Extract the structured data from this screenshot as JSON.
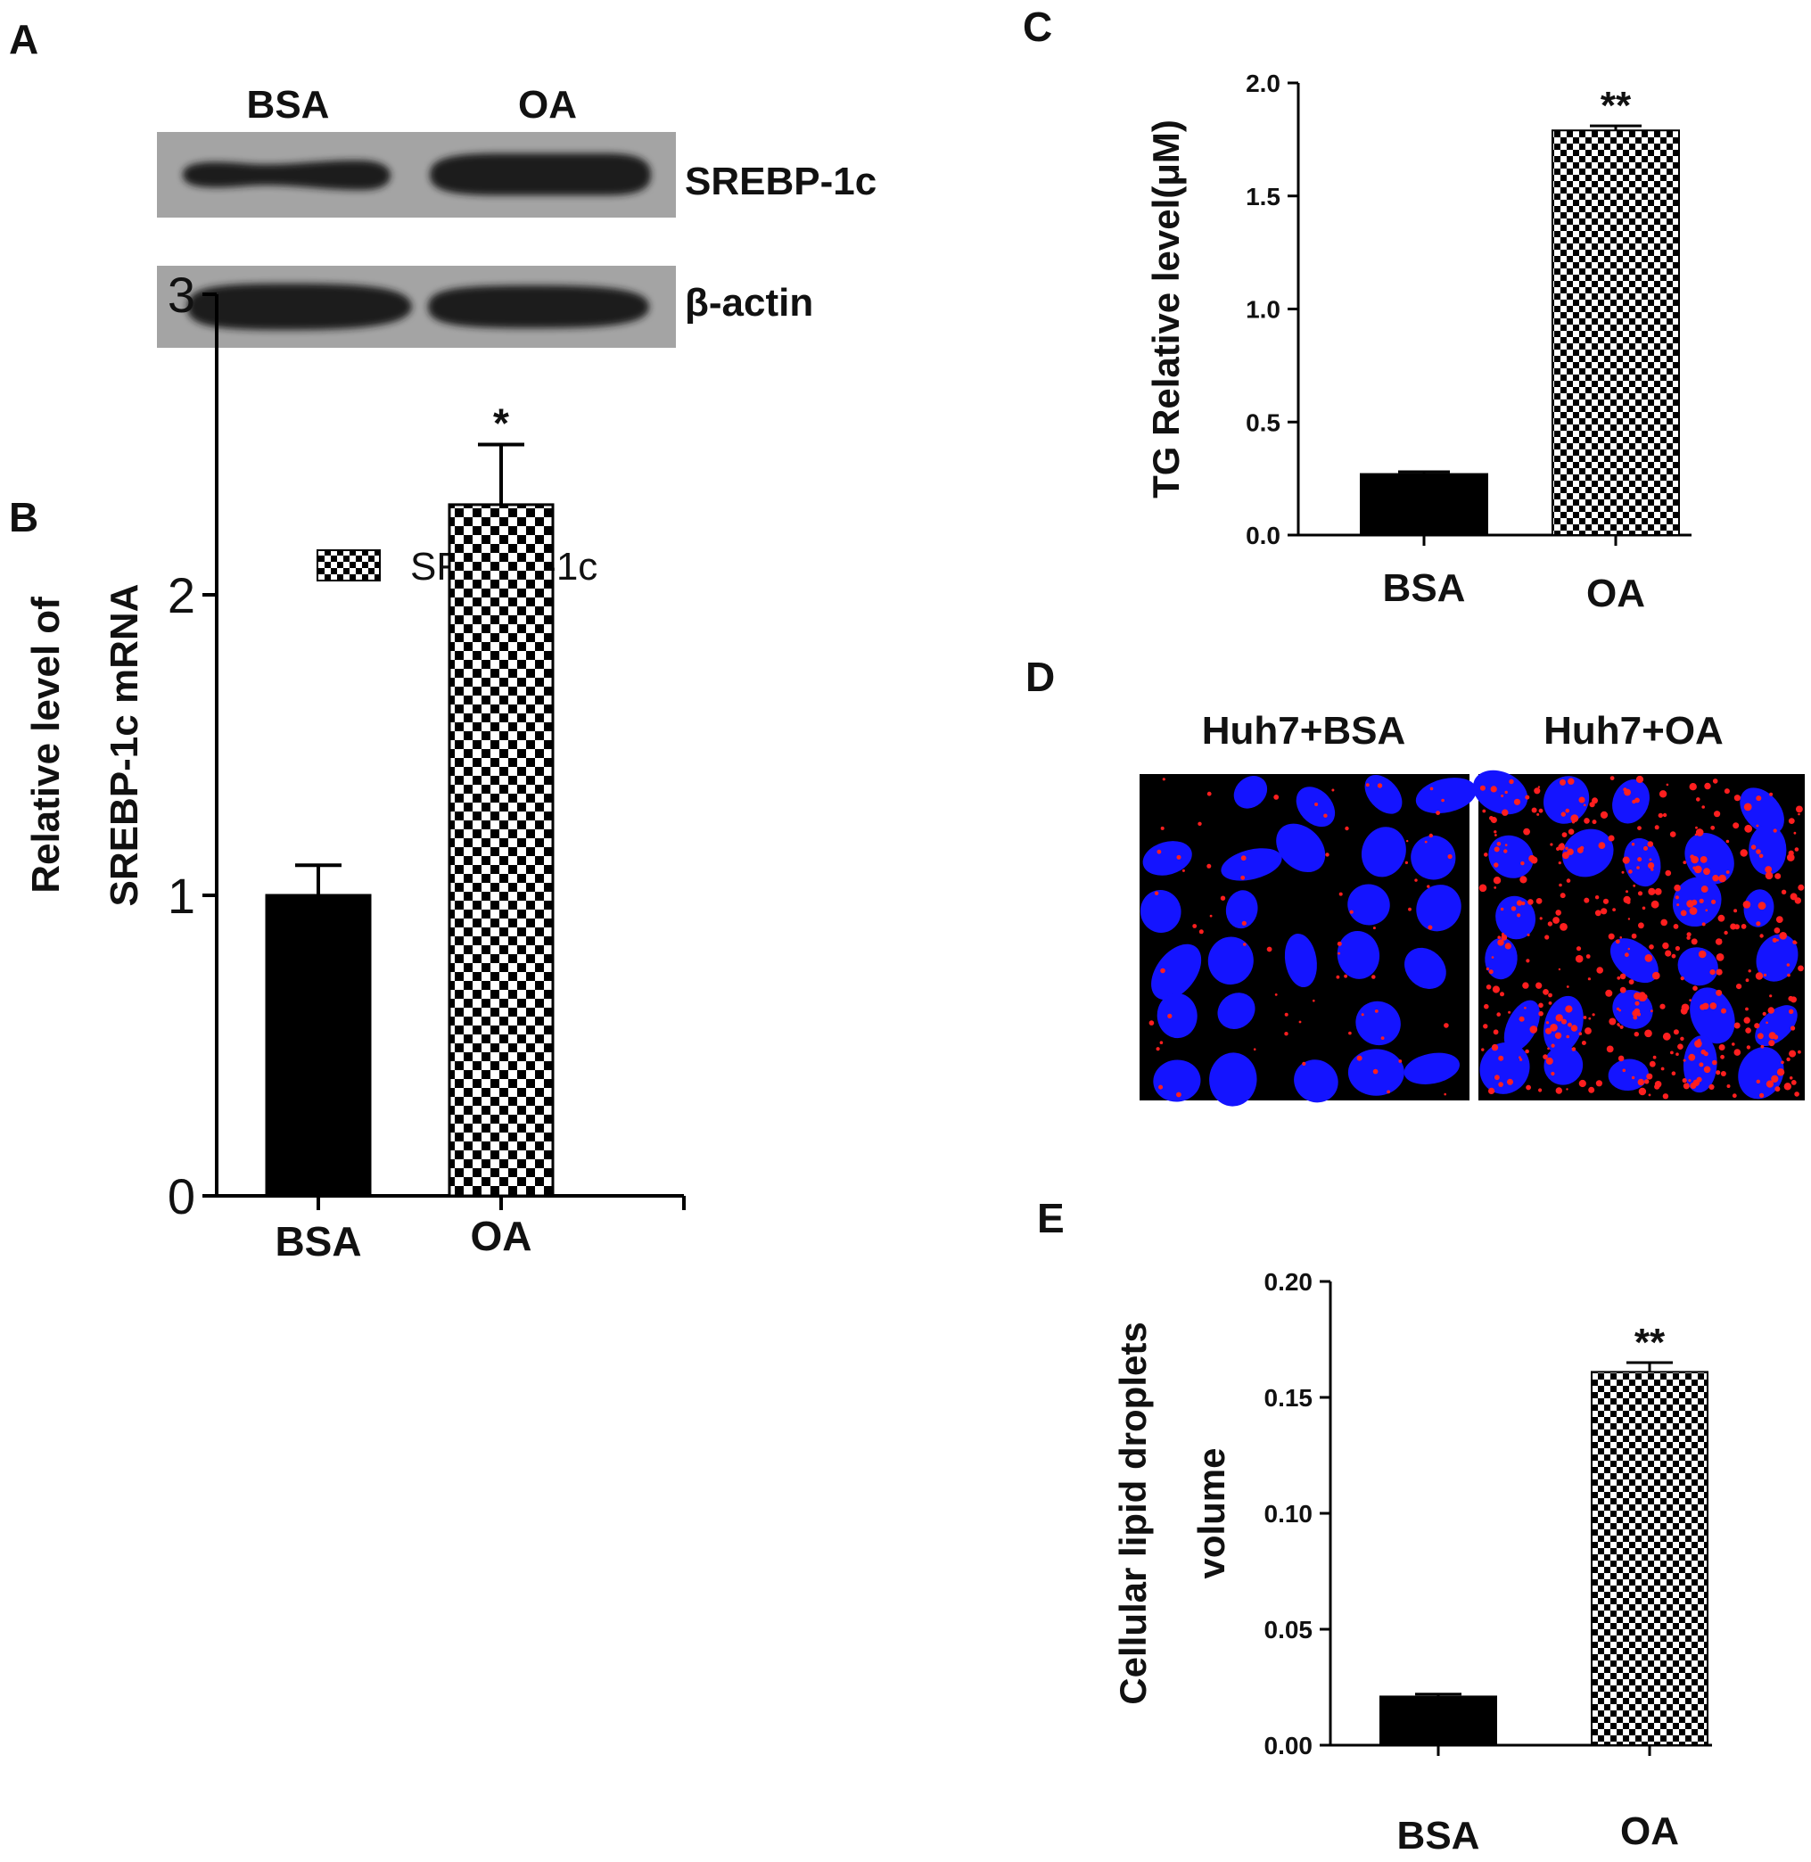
{
  "panels": {
    "A": {
      "letter": "A",
      "lanes": [
        "BSA",
        "OA"
      ],
      "bands": [
        {
          "label": "SREBP-1c",
          "intensity": [
            0.8,
            1.0
          ]
        },
        {
          "label": "β-actin",
          "intensity": [
            1.0,
            1.0
          ]
        }
      ]
    },
    "D": {
      "letter": "D",
      "images": [
        {
          "label": "Huh7+BSA",
          "lipid_density": "low"
        },
        {
          "label": "Huh7+OA",
          "lipid_density": "high"
        }
      ],
      "colors": {
        "nucleus": "#1414ff",
        "lipid": "#ff1f1f",
        "background": "#000000"
      }
    }
  },
  "chart_data": [
    {
      "panel": "B",
      "type": "bar",
      "categories": [
        "BSA",
        "OA"
      ],
      "values": [
        1.0,
        2.3
      ],
      "errors": [
        0.1,
        0.2
      ],
      "significance": [
        "",
        "*"
      ],
      "ylabel_lines": [
        "Relative level of",
        "SREBP-1c mRNA"
      ],
      "ylim": [
        0,
        3
      ],
      "yticks": [
        "0",
        "1",
        "2",
        "3"
      ],
      "legend": {
        "label": "SREBP-1c",
        "position": "top"
      },
      "fills": [
        "solid",
        "checker"
      ]
    },
    {
      "panel": "C",
      "type": "bar",
      "categories": [
        "BSA",
        "OA"
      ],
      "values": [
        0.27,
        1.79
      ],
      "errors": [
        0.01,
        0.02
      ],
      "significance": [
        "",
        "**"
      ],
      "ylabel_lines": [
        "TG Relative level(μM)"
      ],
      "ylim": [
        0,
        2.0
      ],
      "yticks": [
        "0.0",
        "0.5",
        "1.0",
        "1.5",
        "2.0"
      ],
      "fills": [
        "solid",
        "checker"
      ]
    },
    {
      "panel": "E",
      "type": "bar",
      "categories": [
        "BSA",
        "OA"
      ],
      "values": [
        0.021,
        0.161
      ],
      "errors": [
        0.001,
        0.004
      ],
      "significance": [
        "",
        "**"
      ],
      "ylabel_lines": [
        "Cellular lipid droplets",
        "volume"
      ],
      "ylim": [
        0,
        0.2
      ],
      "yticks": [
        "0.00",
        "0.05",
        "0.10",
        "0.15",
        "0.20"
      ],
      "fills": [
        "solid",
        "checker"
      ]
    }
  ]
}
